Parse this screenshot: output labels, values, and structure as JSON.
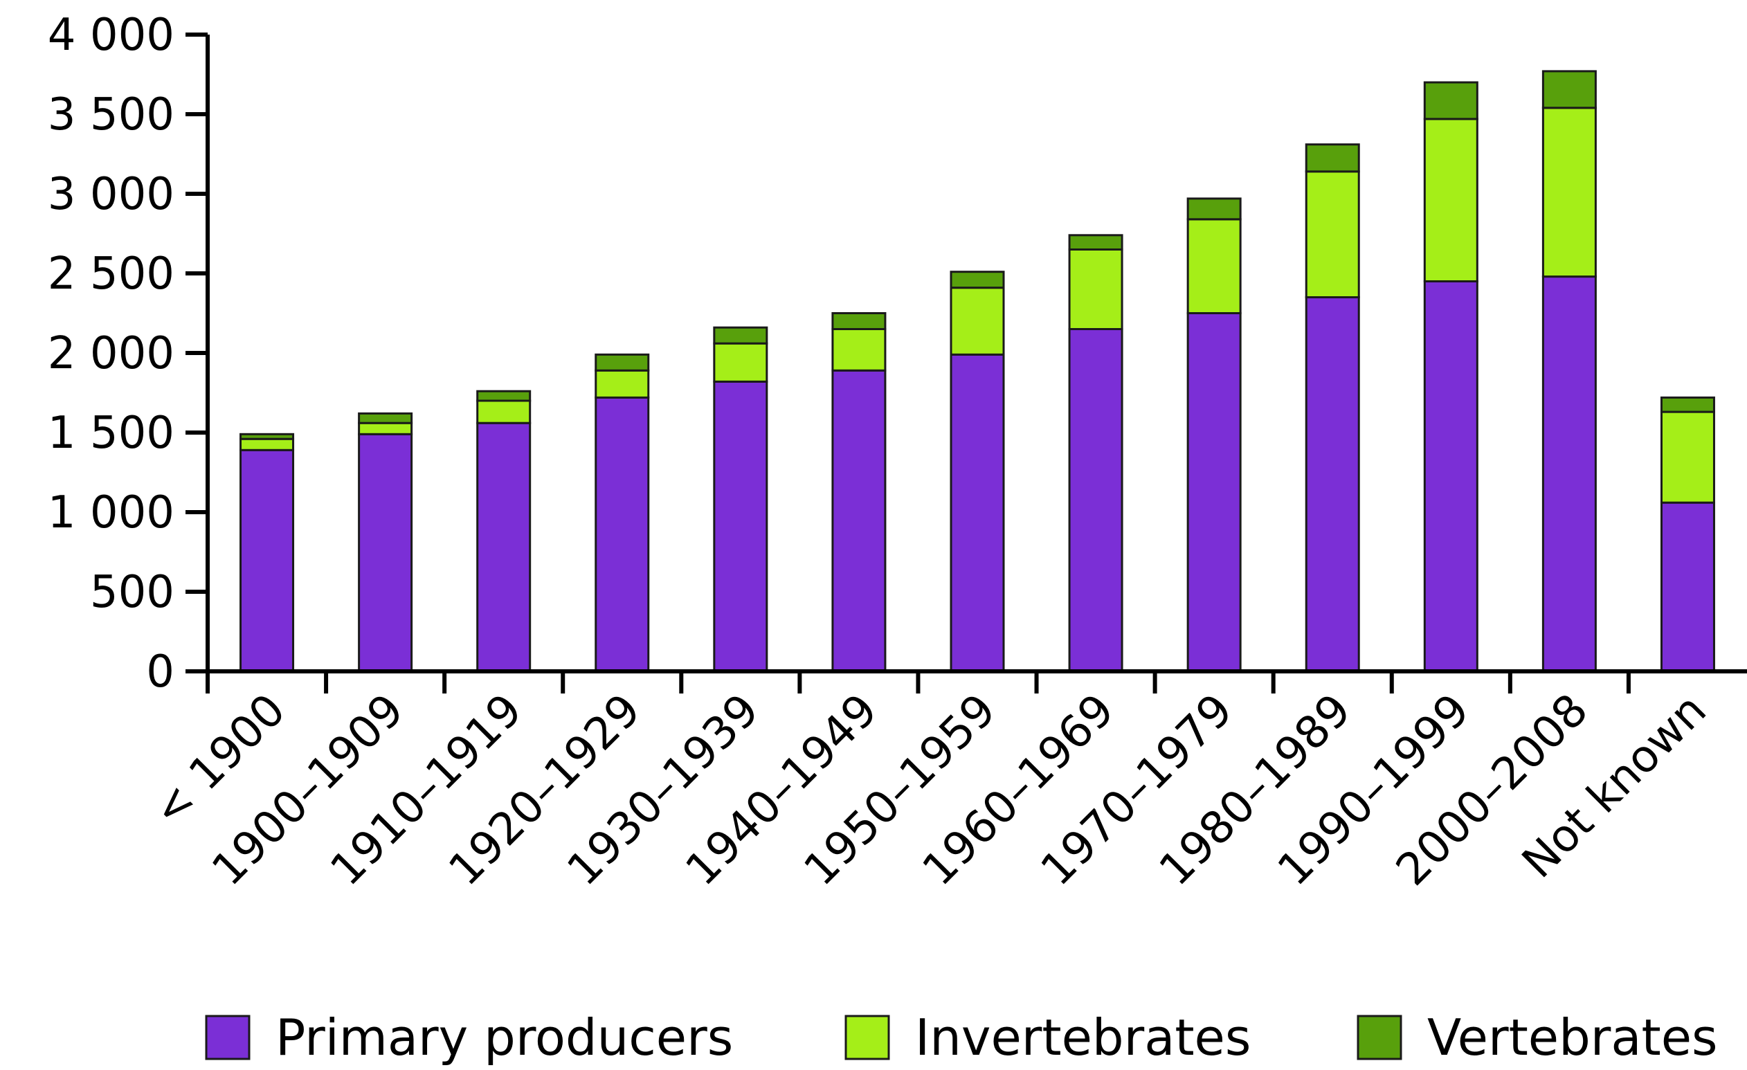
{
  "chart_data": {
    "type": "bar",
    "stacked": true,
    "title": "",
    "xlabel": "",
    "ylabel": "",
    "ylim": [
      0,
      4000
    ],
    "yticks": [
      0,
      500,
      1000,
      1500,
      2000,
      2500,
      3000,
      3500,
      4000
    ],
    "ytick_labels": [
      "0",
      "500",
      "1 000",
      "1 500",
      "2 000",
      "2 500",
      "3 000",
      "3 500",
      "4 000"
    ],
    "categories": [
      "< 1900",
      "1900–1909",
      "1910–1919",
      "1920–1929",
      "1930–1939",
      "1940–1949",
      "1950–1959",
      "1960–1969",
      "1970–1979",
      "1980–1989",
      "1990–1999",
      "2000–2008",
      "Not known"
    ],
    "series": [
      {
        "name": "Primary producers",
        "color": "#7b2fd6",
        "values": [
          1390,
          1490,
          1560,
          1720,
          1820,
          1890,
          1990,
          2150,
          2250,
          2350,
          2450,
          2480,
          1060
        ]
      },
      {
        "name": "Invertebrates",
        "color": "#a5ee18",
        "values": [
          70,
          70,
          140,
          170,
          240,
          260,
          420,
          500,
          590,
          790,
          1020,
          1060,
          570
        ]
      },
      {
        "name": "Vertebrates",
        "color": "#58a00c",
        "values": [
          30,
          60,
          60,
          100,
          100,
          100,
          100,
          90,
          130,
          170,
          230,
          230,
          90
        ]
      }
    ],
    "grid": false,
    "legend_position": "bottom"
  }
}
